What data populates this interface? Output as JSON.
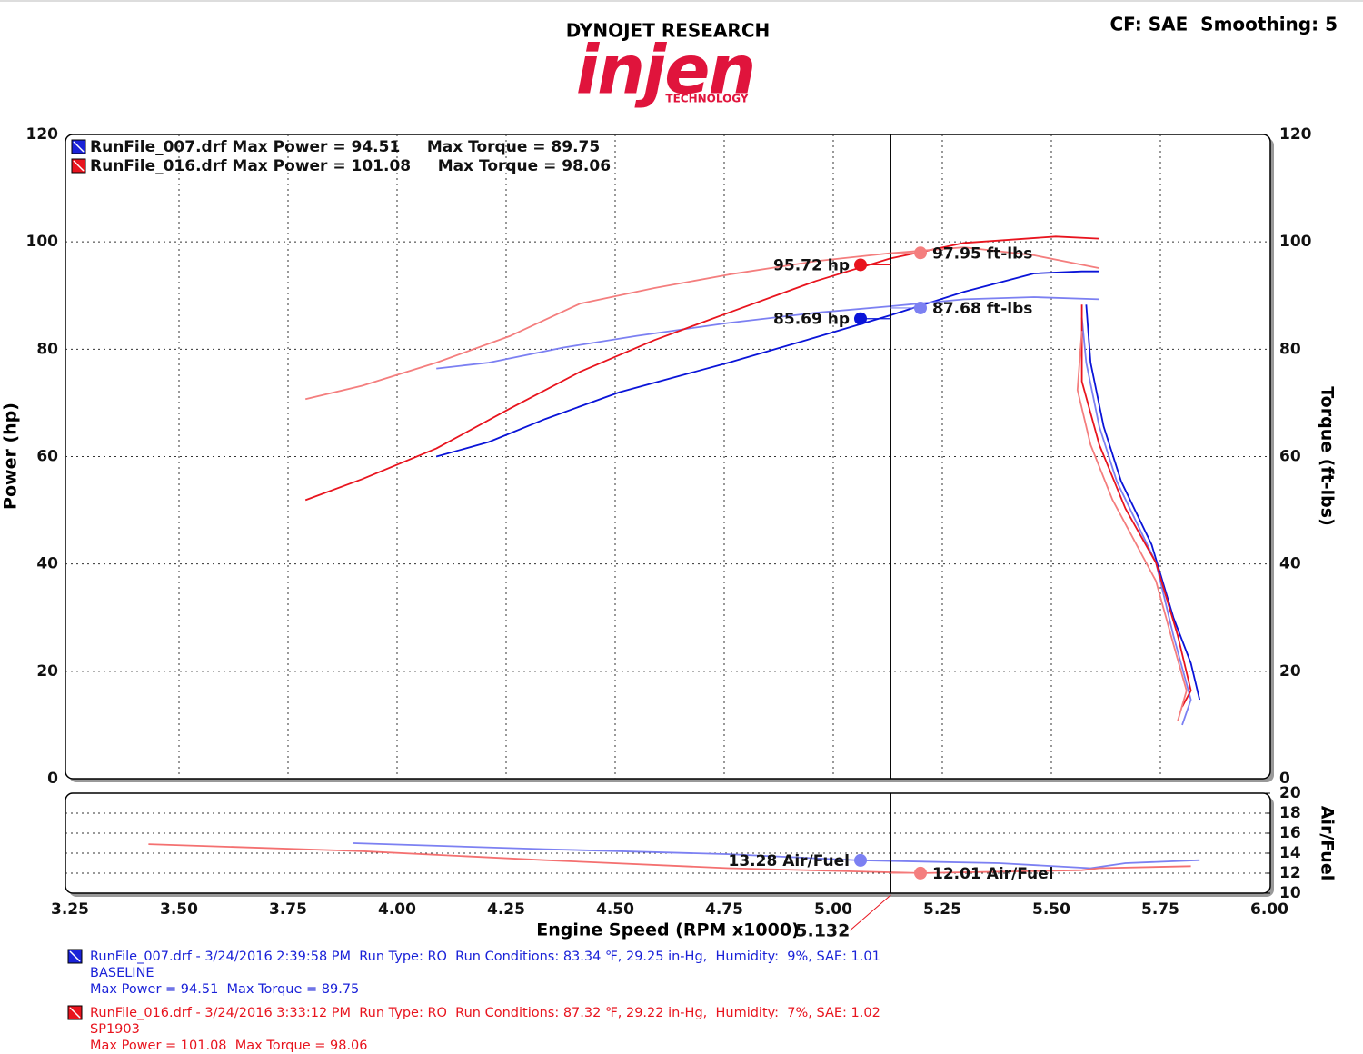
{
  "header": {
    "title": "DYNOJET RESEARCH",
    "logo": "injen",
    "logo_sub": "TECHNOLOGY",
    "settings": "CF: SAE  Smoothing: 5"
  },
  "chart_data": [
    {
      "type": "line",
      "y_label": "Power (hp)",
      "y2_label": "Torque (ft-lbs)",
      "xlim": [
        3.25,
        6.0
      ],
      "ylim": [
        0,
        120
      ],
      "yticks": [
        0,
        20,
        40,
        60,
        80,
        100,
        120
      ],
      "y2lim": [
        0,
        120
      ],
      "y2ticks": [
        0,
        20,
        40,
        60,
        80,
        100,
        120
      ],
      "grid": true,
      "legend": [
        {
          "text": "RunFile_007.drf Max Power = 94.51     Max Torque = 89.75",
          "color": "#1a22d8"
        },
        {
          "text": "RunFile_016.drf Max Power = 101.08     Max Torque = 98.06",
          "color": "#e8141e"
        }
      ],
      "series": [
        {
          "color": "#0a14d8",
          "x": [
            4.09,
            4.21,
            4.34,
            4.51,
            4.76,
            4.96,
            5.13,
            5.3,
            5.46,
            5.57,
            5.61,
            null,
            5.58,
            5.59,
            5.62,
            5.66,
            5.73,
            5.78,
            5.82,
            5.84
          ],
          "values": [
            60,
            62.7,
            67,
            72,
            77.5,
            82.2,
            86.3,
            90.7,
            94.1,
            94.5,
            94.5,
            null,
            88.3,
            77.5,
            65.6,
            55.4,
            43.6,
            30,
            21.5,
            14.7
          ]
        },
        {
          "color": "#7c80f2",
          "axis": "y2",
          "x": [
            4.09,
            4.21,
            4.38,
            4.55,
            4.76,
            4.96,
            5.13,
            5.3,
            5.46,
            5.61,
            null,
            5.57,
            5.58,
            5.61,
            5.65,
            5.74,
            5.78,
            5.82,
            5.8
          ],
          "values": [
            76.4,
            77.5,
            80.3,
            82.5,
            84.9,
            86.8,
            88,
            89.3,
            89.7,
            89.3,
            null,
            85.9,
            77.5,
            65.6,
            55.4,
            40.2,
            26.6,
            14.7,
            10
          ]
        },
        {
          "color": "#e8141e",
          "x": [
            3.79,
            3.92,
            4.09,
            4.26,
            4.42,
            4.59,
            4.76,
            4.96,
            5.13,
            5.3,
            5.51,
            5.61,
            null,
            5.57,
            5.57,
            5.61,
            5.67,
            5.74,
            5.79,
            5.82,
            5.8
          ],
          "values": [
            51.9,
            55.8,
            61.5,
            69,
            75.8,
            81.7,
            86.8,
            92.7,
            96.9,
            99.8,
            101,
            100.6,
            null,
            88.3,
            74,
            62.2,
            50.3,
            40.2,
            26.6,
            16.4,
            13.4
          ]
        },
        {
          "color": "#f47e7e",
          "axis": "y2",
          "x": [
            3.79,
            3.92,
            4.09,
            4.26,
            4.42,
            4.59,
            4.76,
            4.96,
            5.13,
            5.3,
            5.46,
            5.61,
            null,
            5.57,
            5.56,
            5.59,
            5.64,
            5.74,
            5.78,
            5.81,
            5.79
          ],
          "values": [
            70.7,
            73.2,
            77.5,
            82.5,
            88.5,
            91.4,
            93.9,
            96.4,
            97.9,
            99,
            97.5,
            95.1,
            null,
            83.4,
            72.4,
            62.2,
            52,
            36.8,
            25,
            16.4,
            10.8
          ]
        }
      ],
      "annotations": [
        {
          "label": "95.72 hp",
          "value": 95.72,
          "color": "#e8141e"
        },
        {
          "label": "97.95 ft-lbs",
          "value": 97.95,
          "color": "#f47e7e"
        },
        {
          "label": "85.69 hp",
          "value": 85.69,
          "color": "#0a14d8"
        },
        {
          "label": "87.68 ft-lbs",
          "value": 87.68,
          "color": "#7c80f2"
        }
      ]
    },
    {
      "type": "line",
      "x_label": "Engine Speed (RPM x1000)",
      "y_label": "Air/Fuel",
      "xlim": [
        3.25,
        6.0
      ],
      "xticks": [
        {
          "value": 3.25,
          "label": "3.25"
        },
        {
          "value": 3.5,
          "label": "3.50"
        },
        {
          "value": 3.75,
          "label": "3.75"
        },
        {
          "value": 4.0,
          "label": "4.00"
        },
        {
          "value": 4.25,
          "label": "4.25"
        },
        {
          "value": 4.5,
          "label": "4.50"
        },
        {
          "value": 4.75,
          "label": "4.75"
        },
        {
          "value": 5.0,
          "label": "5.00"
        },
        {
          "value": 5.25,
          "label": "5.25"
        },
        {
          "value": 5.5,
          "label": "5.50"
        },
        {
          "value": 5.75,
          "label": "5.75"
        },
        {
          "value": 6.0,
          "label": "6.00"
        }
      ],
      "ylim": [
        10,
        20
      ],
      "yticks": [
        10,
        12,
        14,
        16,
        18,
        20
      ],
      "grid": true,
      "cursor_x": 5.132,
      "series": [
        {
          "color": "#7c80f2",
          "x": [
            3.9,
            4.34,
            4.76,
            5.06,
            5.38,
            5.59,
            5.67,
            5.84
          ],
          "values": [
            15.0,
            14.4,
            13.9,
            13.28,
            13.0,
            12.5,
            13.0,
            13.3
          ]
        },
        {
          "color": "#f47070",
          "x": [
            3.43,
            3.92,
            4.34,
            4.76,
            5.2,
            5.57,
            5.61,
            5.82
          ],
          "values": [
            14.9,
            14.2,
            13.3,
            12.5,
            12.01,
            12.3,
            12.5,
            12.7
          ]
        }
      ],
      "annotations": [
        {
          "label": "13.28 Air/Fuel",
          "value": 13.28,
          "color": "#7c80f2"
        },
        {
          "label": "12.01 Air/Fuel",
          "value": 12.01,
          "color": "#f47e7e"
        }
      ]
    }
  ],
  "footer": [
    {
      "color": "#1a22d8",
      "lines": [
        "RunFile_007.drf - 3/24/2016 2:39:58 PM  Run Type: RO  Run Conditions: 83.34 ℉, 29.25 in-Hg,  Humidity:  9%, SAE: 1.01",
        "BASELINE",
        "Max Power = 94.51  Max Torque = 89.75"
      ]
    },
    {
      "color": "#e8141e",
      "lines": [
        "RunFile_016.drf - 3/24/2016 3:33:12 PM  Run Type: RO  Run Conditions: 87.32 ℉, 29.22 in-Hg,  Humidity:  7%, SAE: 1.02",
        "SP1903",
        "Max Power = 101.08  Max Torque = 98.06"
      ]
    }
  ]
}
